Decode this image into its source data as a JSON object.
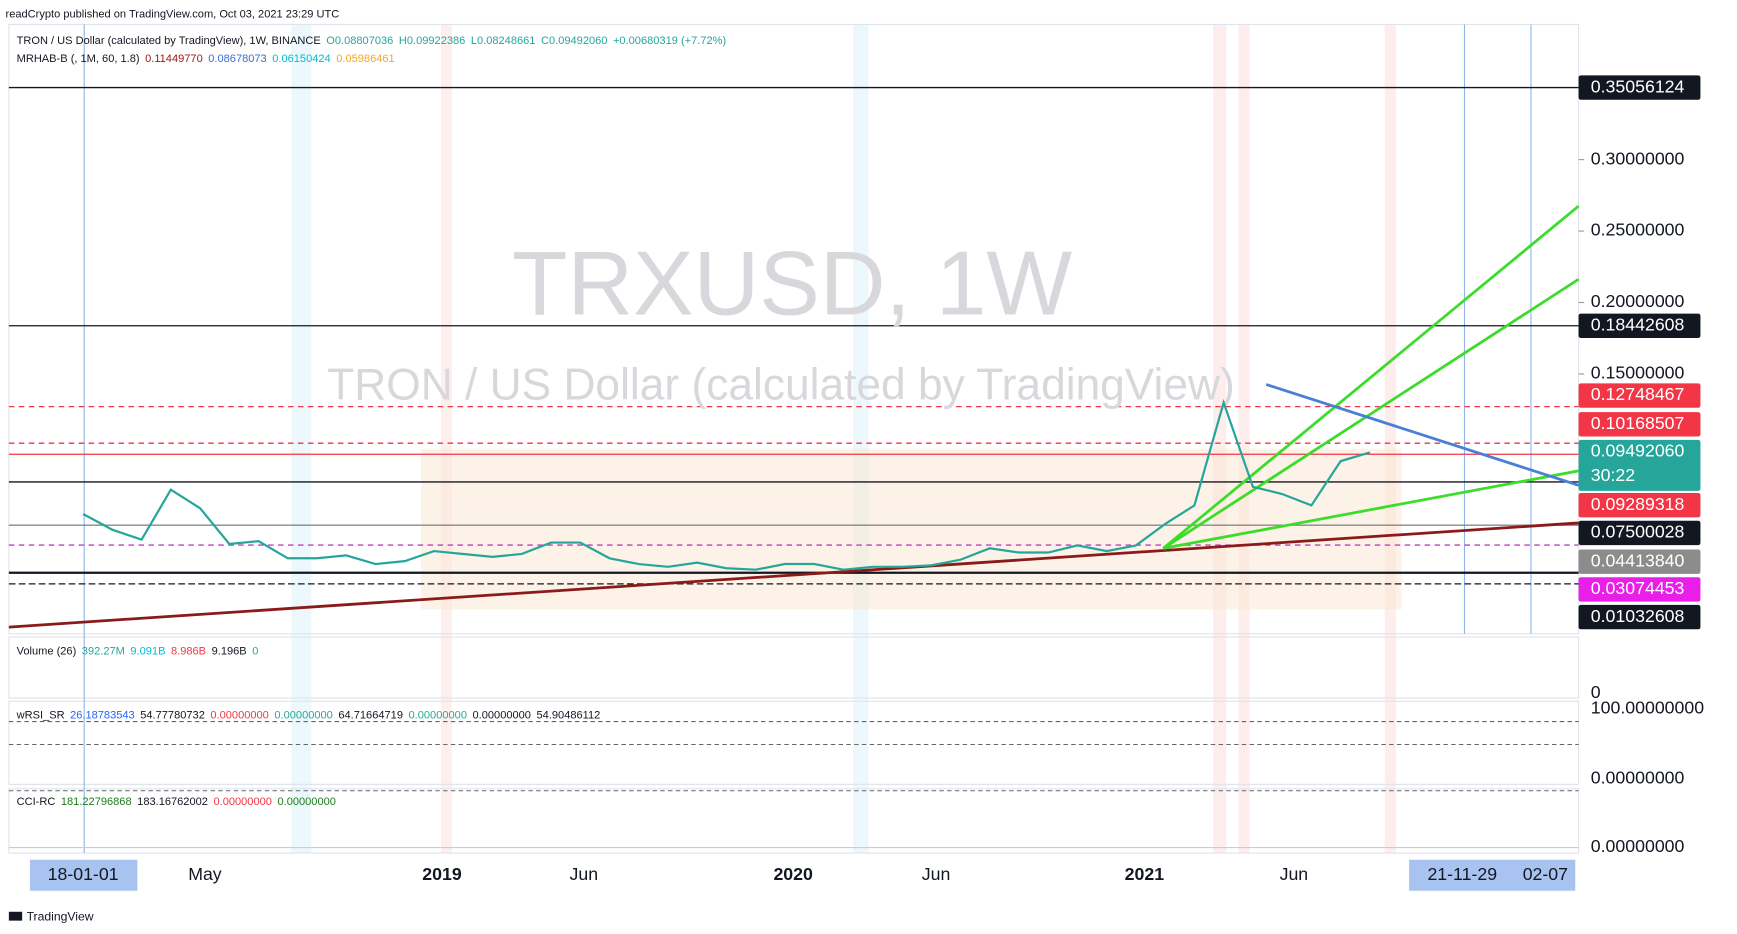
{
  "header": {
    "publisher": "readCrypto published on TradingView.com, Oct 03, 2021 23:29 UTC"
  },
  "legend": {
    "symbol": "TRON / US Dollar (calculated by TradingView), 1W, BINANCE",
    "open": "O0.08807036",
    "high": "H0.09922386",
    "low": "L0.08248661",
    "close": "C0.09492060",
    "change": "+0.00680319 (+7.72%)",
    "indicator": "MRHAB-B (, 1M, 60, 1.8)",
    "indicator_values": [
      "0.11449770",
      "0.08678073",
      "0.06150424",
      "0.05986461"
    ]
  },
  "watermark": {
    "symbol": "TRXUSD, 1W",
    "description": "TRON / US Dollar (calculated by TradingView)"
  },
  "chart_data": {
    "type": "line",
    "color": "#26a69a",
    "x": [
      "2018-01",
      "2018-02",
      "2018-03",
      "2018-04",
      "2018-05",
      "2018-06",
      "2018-07",
      "2018-08",
      "2018-09",
      "2018-10",
      "2018-11",
      "2018-12",
      "2019-01",
      "2019-02",
      "2019-03",
      "2019-04",
      "2019-05",
      "2019-06",
      "2019-07",
      "2019-08",
      "2019-09",
      "2019-10",
      "2019-11",
      "2019-12",
      "2020-01",
      "2020-02",
      "2020-03",
      "2020-04",
      "2020-05",
      "2020-06",
      "2020-07",
      "2020-08",
      "2020-09",
      "2020-10",
      "2020-11",
      "2020-12",
      "2021-01",
      "2021-02",
      "2021-03",
      "2021-04",
      "2021-05",
      "2021-06",
      "2021-07",
      "2021-08",
      "2021-09"
    ],
    "values": [
      0.052,
      0.041,
      0.034,
      0.069,
      0.056,
      0.031,
      0.033,
      0.021,
      0.021,
      0.023,
      0.017,
      0.019,
      0.026,
      0.024,
      0.022,
      0.024,
      0.032,
      0.032,
      0.021,
      0.017,
      0.015,
      0.018,
      0.014,
      0.013,
      0.017,
      0.017,
      0.013,
      0.015,
      0.015,
      0.016,
      0.02,
      0.028,
      0.025,
      0.025,
      0.03,
      0.026,
      0.03,
      0.045,
      0.058,
      0.13,
      0.071,
      0.066,
      0.058,
      0.089,
      0.095
    ],
    "ylim": [
      -0.0318,
      0.3946
    ],
    "yticks": [
      {
        "value": 0.3,
        "label": "0.30000000"
      },
      {
        "value": 0.25,
        "label": "0.25000000"
      },
      {
        "value": 0.2,
        "label": "0.20000000"
      },
      {
        "value": 0.15,
        "label": "0.15000000"
      }
    ]
  },
  "price_tags": [
    {
      "value": 0.35056124,
      "color": "#131722"
    },
    {
      "value": 0.18442608,
      "color": "#131722"
    },
    {
      "value": 0.12748467,
      "color": "#f23645"
    },
    {
      "value": 0.10168507,
      "color": "#f23645"
    },
    {
      "value": {
        "value": 0.0949206,
        "label": "0.09492060"
      },
      "color": "#26a69a",
      "countdown": "30:22"
    },
    {
      "value": 0.09289318,
      "color": "#f23645"
    },
    {
      "value": 0.07500028,
      "color": "#131722"
    },
    {
      "value": {
        "value": 0.0441384,
        "label": "0.04413840"
      },
      "color": "#8c8c8c"
    },
    {
      "value": 0.03074453,
      "color": "#e91ee9"
    },
    {
      "value": 0.01032608,
      "color": "#131722"
    }
  ],
  "volume": {
    "title": "Volume (26)",
    "values": [
      "392.27M",
      "9.091B",
      "8.986B",
      "9.196B",
      "0"
    ],
    "axis": [
      0
    ]
  },
  "wrsi": {
    "title": "wRSI_SR",
    "values": [
      "26.18783543",
      "54.77780732",
      "0.00000000",
      "0.00000000",
      "64.71664719",
      "0.00000000",
      "0.00000000",
      "54.90486112"
    ],
    "ylim": [
      -10,
      110
    ],
    "axis": [
      {
        "value": 100,
        "label": "100.00000000"
      },
      {
        "value": 0,
        "label": "0.00000000"
      }
    ]
  },
  "cci": {
    "title": "CCI-RC",
    "values": [
      "181.22796868",
      "183.16762002",
      "0.00000000",
      "0.00000000"
    ],
    "axis": [
      {
        "value": 0,
        "label": "0.00000000"
      }
    ]
  },
  "time_axis": [
    "18-01-01",
    "May",
    "2019",
    "Jun",
    "2020",
    "Jun",
    "2021",
    "Jun",
    "21-11-29",
    "02-07"
  ],
  "footer": {
    "brand": "TradingView"
  }
}
